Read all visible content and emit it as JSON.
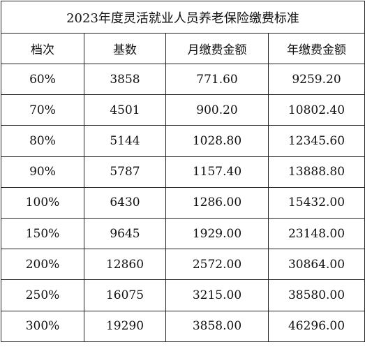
{
  "table": {
    "title": "2023年度灵活就业人员养老保险缴费标准",
    "header": [
      "档次",
      "基数",
      "月缴费金额",
      "年缴费金额"
    ],
    "rows": [
      [
        "60%",
        "3858",
        "771.60",
        "9259.20"
      ],
      [
        "70%",
        "4501",
        "900.20",
        "10802.40"
      ],
      [
        "80%",
        "5144",
        "1028.80",
        "12345.60"
      ],
      [
        "90%",
        "5787",
        "1157.40",
        "13888.80"
      ],
      [
        "100%",
        "6430",
        "1286.00",
        "15432.00"
      ],
      [
        "150%",
        "9645",
        "1929.00",
        "23148.00"
      ],
      [
        "200%",
        "12860",
        "2572.00",
        "30864.00"
      ],
      [
        "250%",
        "16075",
        "3215.00",
        "38580.00"
      ],
      [
        "300%",
        "19290",
        "3858.00",
        "46296.00"
      ]
    ]
  }
}
